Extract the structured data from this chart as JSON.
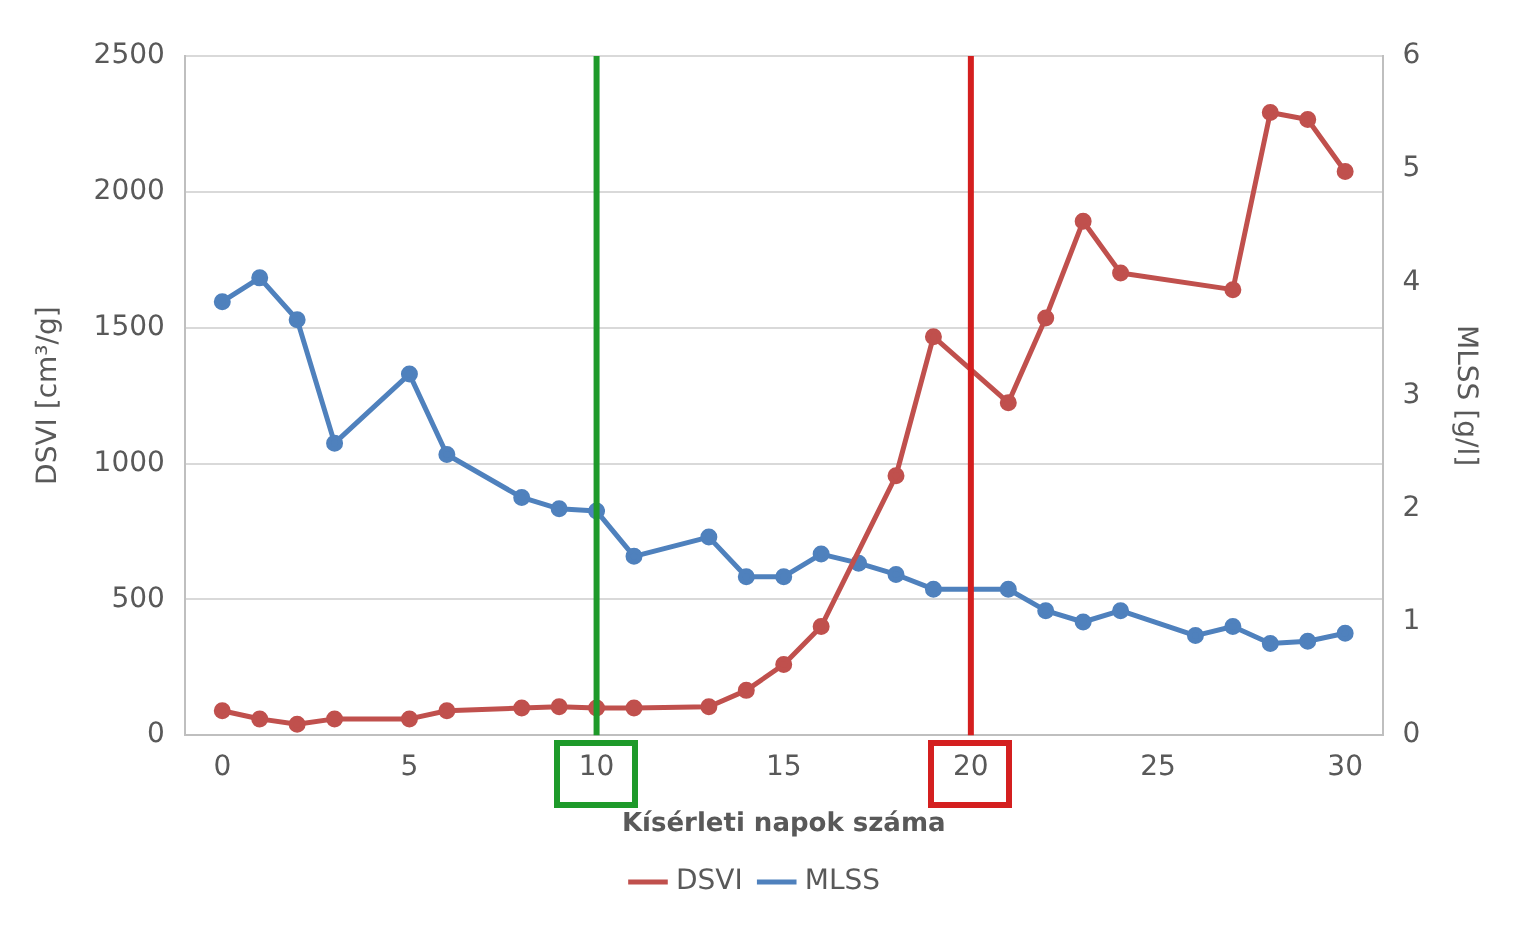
{
  "chart_data": {
    "type": "line",
    "xlabel": "Kísérleti napok száma",
    "ylabel": "DSVI [cm³/g]",
    "y2label": "MLSS [g/l]",
    "xlim": [
      -1,
      31
    ],
    "xticks": [
      0,
      5,
      10,
      15,
      20,
      25,
      30
    ],
    "ylim": [
      0,
      2500
    ],
    "yticks": [
      0,
      500,
      1000,
      1500,
      2000,
      2500
    ],
    "y2lim": [
      0,
      6
    ],
    "y2ticks": [
      0,
      1,
      2,
      3,
      4,
      5,
      6
    ],
    "grid": "y",
    "legend": "bottom",
    "marker": "circle",
    "series": [
      {
        "name": "DSVI",
        "color": "#c0504d",
        "x": [
          0,
          1,
          2,
          3,
          5,
          6,
          8,
          9,
          10,
          11,
          13,
          14,
          15,
          16,
          18,
          19,
          21,
          22,
          23,
          24,
          27,
          28,
          29,
          30
        ],
        "values": [
          90,
          60,
          40,
          60,
          60,
          90,
          100,
          105,
          100,
          100,
          105,
          165,
          260,
          400,
          955,
          1467,
          1224,
          1536,
          1892,
          1701,
          1640,
          2292,
          2266,
          2075
        ]
      },
      {
        "name": "MLSS",
        "color": "#4f81bd",
        "axis": "y2",
        "x": [
          0,
          1,
          2,
          3,
          5,
          6,
          8,
          9,
          10,
          11,
          13,
          14,
          15,
          16,
          17,
          18,
          19,
          21,
          22,
          23,
          24,
          26,
          27,
          28,
          29,
          30
        ],
        "values": [
          3.83,
          4.04,
          3.67,
          2.58,
          3.19,
          2.48,
          2.1,
          2.0,
          1.98,
          1.58,
          1.75,
          1.4,
          1.4,
          1.6,
          1.52,
          1.42,
          1.29,
          1.29,
          1.1,
          1.0,
          1.1,
          0.88,
          0.96,
          0.81,
          0.83,
          0.9
        ]
      }
    ],
    "ref_lines": [
      {
        "axis": "x",
        "value": 10,
        "color": "#1e9a2a"
      },
      {
        "axis": "x",
        "value": 20,
        "color": "#d41f1f"
      }
    ]
  }
}
